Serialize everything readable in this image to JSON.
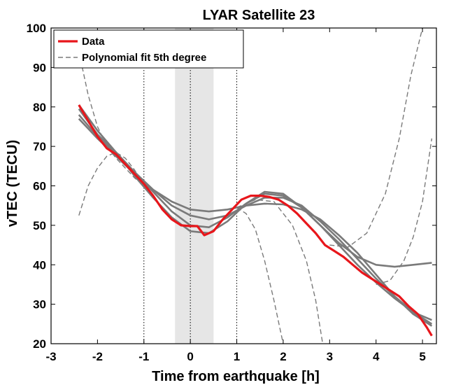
{
  "chart_data": {
    "type": "line",
    "title": "LYAR Satellite 23",
    "xlabel": "Time from earthquake [h]",
    "ylabel": "vTEC (TECU)",
    "xlim": [
      -3,
      5.3
    ],
    "ylim": [
      20,
      100
    ],
    "xticks": [
      "-3",
      "-2",
      "-1",
      "0",
      "1",
      "2",
      "3",
      "4",
      "5"
    ],
    "yticks": [
      "20",
      "30",
      "40",
      "50",
      "60",
      "70",
      "80",
      "90",
      "100"
    ],
    "grid": false,
    "legend": {
      "position": "top-left",
      "entries": [
        "Data",
        "Polynomial fit 5th degree"
      ]
    },
    "shaded_interval": {
      "x": [
        -0.33,
        0.5
      ],
      "color": "#e6e6e6"
    },
    "vertical_lines": [
      -1,
      0,
      1
    ],
    "colors": {
      "data": "#e8161b",
      "fit": "#7a7a7a",
      "extrapolation": "#7a7a7a"
    },
    "data_series": {
      "name": "Data",
      "x": [
        -2.4,
        -2.2,
        -2.0,
        -1.8,
        -1.6,
        -1.4,
        -1.2,
        -1.0,
        -0.8,
        -0.6,
        -0.4,
        -0.2,
        0.0,
        0.15,
        0.3,
        0.5,
        0.7,
        0.9,
        1.1,
        1.3,
        1.5,
        1.7,
        1.9,
        2.1,
        2.3,
        2.5,
        2.7,
        2.9,
        3.1,
        3.3,
        3.5,
        3.7,
        3.9,
        4.1,
        4.3,
        4.5,
        4.7,
        4.9,
        5.1,
        5.2
      ],
      "y": [
        80.5,
        76.5,
        72.5,
        69.5,
        68.0,
        65.5,
        63.0,
        60.5,
        57.5,
        54.0,
        51.5,
        50.0,
        49.8,
        49.8,
        47.5,
        48.5,
        51.5,
        54.0,
        56.5,
        57.5,
        57.5,
        57.2,
        56.5,
        55.0,
        53.0,
        50.5,
        48.0,
        45.0,
        43.5,
        42.0,
        40.0,
        38.0,
        36.5,
        35.0,
        33.5,
        32.0,
        29.5,
        27.5,
        24.0,
        22.0
      ]
    },
    "fit_series": [
      {
        "x": [
          -2.4,
          -2.0,
          -1.6,
          -1.2,
          -0.8,
          -0.4,
          0.0,
          0.4,
          0.8,
          1.2,
          1.6,
          2.0,
          2.4,
          2.8,
          3.2,
          3.6,
          4.0,
          4.4,
          4.8,
          5.2
        ],
        "y": [
          79.5,
          73.0,
          68.5,
          63.5,
          58.5,
          53.5,
          50.0,
          49.5,
          52.0,
          55.5,
          58.0,
          57.5,
          54.5,
          50.0,
          45.0,
          40.0,
          35.5,
          31.5,
          28.0,
          25.0
        ]
      },
      {
        "x": [
          -2.4,
          -2.0,
          -1.6,
          -1.2,
          -0.8,
          -0.4,
          0.0,
          0.4,
          0.8,
          1.2,
          1.6,
          2.0,
          2.4,
          2.8,
          3.2,
          3.6,
          4.0,
          4.4,
          4.8,
          5.2
        ],
        "y": [
          78.0,
          72.5,
          68.0,
          63.5,
          59.0,
          55.0,
          52.5,
          51.5,
          52.5,
          55.0,
          57.0,
          57.0,
          55.0,
          51.0,
          46.5,
          41.5,
          36.5,
          32.0,
          28.0,
          26.0
        ]
      },
      {
        "x": [
          -2.4,
          -2.0,
          -1.6,
          -1.2,
          -0.8,
          -0.4,
          0.0,
          0.4,
          0.8,
          1.2,
          1.6,
          2.0,
          2.4,
          2.8,
          3.2,
          3.6,
          4.0,
          4.4,
          4.8,
          5.2
        ],
        "y": [
          77.0,
          72.0,
          67.5,
          63.0,
          59.0,
          56.0,
          54.0,
          53.5,
          54.0,
          55.0,
          55.5,
          55.3,
          54.0,
          51.5,
          47.5,
          43.0,
          37.5,
          32.0,
          27.5,
          24.5
        ]
      },
      {
        "x": [
          -2.4,
          -2.0,
          -1.6,
          -1.2,
          -0.8,
          -0.4,
          0.0,
          0.4,
          0.8,
          1.2,
          1.6,
          2.0,
          2.4,
          2.8,
          3.2,
          3.6,
          4.0,
          4.4,
          4.8,
          5.2
        ],
        "y": [
          80.5,
          74.0,
          68.5,
          62.5,
          57.0,
          52.0,
          48.5,
          48.0,
          51.0,
          55.5,
          58.5,
          58.0,
          54.5,
          50.0,
          45.5,
          42.0,
          40.0,
          39.5,
          40.0,
          40.5
        ]
      }
    ],
    "extrapolation_series": [
      {
        "x": [
          -2.4,
          -2.2,
          -2.0,
          -1.8,
          -1.6,
          -1.4,
          -1.2,
          -1.0
        ],
        "y": [
          52.5,
          60.0,
          64.5,
          67.5,
          68.5,
          67.0,
          64.0,
          60.0
        ]
      },
      {
        "x": [
          -2.4,
          -2.2,
          -2.0,
          -1.8,
          -1.6,
          -1.4,
          -1.2,
          -1.0
        ],
        "y": [
          94.0,
          83.0,
          75.0,
          70.0,
          67.0,
          64.5,
          62.0,
          60.0
        ]
      },
      {
        "x": [
          1.0,
          1.2,
          1.4,
          1.6,
          1.8,
          2.0
        ],
        "y": [
          54.5,
          53.0,
          49.0,
          41.0,
          31.0,
          20.0
        ]
      },
      {
        "x": [
          1.0,
          1.4,
          1.8,
          2.2,
          2.5,
          2.7,
          2.85
        ],
        "y": [
          54.5,
          56.5,
          56.0,
          50.0,
          41.0,
          31.0,
          20.0
        ]
      },
      {
        "x": [
          3.0,
          3.4,
          3.8,
          4.2,
          4.5,
          4.75,
          5.0
        ],
        "y": [
          45.0,
          44.5,
          48.0,
          58.0,
          72.0,
          88.0,
          100.0
        ]
      },
      {
        "x": [
          4.0,
          4.3,
          4.6,
          4.8,
          5.0,
          5.1,
          5.2
        ],
        "y": [
          35.0,
          36.0,
          41.0,
          47.0,
          56.0,
          64.0,
          72.0
        ]
      }
    ]
  }
}
